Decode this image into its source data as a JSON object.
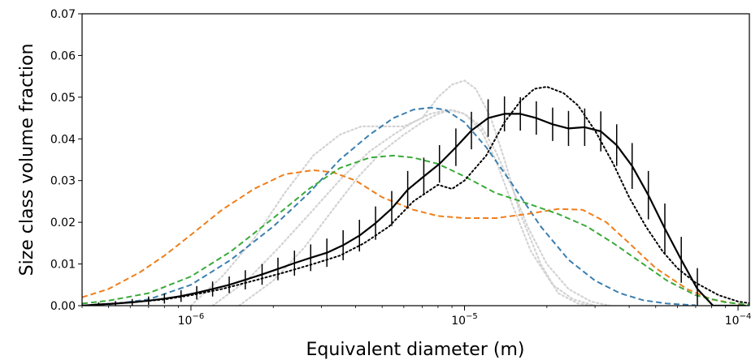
{
  "chart_data": {
    "type": "line",
    "title": "",
    "xlabel": "Equivalent diameter (m)",
    "ylabel": "Size class volume fraction",
    "x_scale": "log",
    "xlim": [
      4e-07,
      0.00011
    ],
    "ylim": [
      0,
      0.07
    ],
    "grid": false,
    "x_ticks": [
      {
        "value": 1e-06,
        "base": "10",
        "exp": "−6"
      },
      {
        "value": 1e-05,
        "base": "10",
        "exp": "−5"
      },
      {
        "value": 0.0001,
        "base": "10",
        "exp": "−4"
      }
    ],
    "y_ticks": [
      {
        "value": 0.0,
        "label": "0.00"
      },
      {
        "value": 0.01,
        "label": "0.01"
      },
      {
        "value": 0.02,
        "label": "0.02"
      },
      {
        "value": 0.03,
        "label": "0.03"
      },
      {
        "value": 0.04,
        "label": "0.04"
      },
      {
        "value": 0.05,
        "label": "0.05"
      },
      {
        "value": 0.06,
        "label": "0.06"
      },
      {
        "value": 0.07,
        "label": "0.07"
      }
    ],
    "series": [
      {
        "key": "grey-1",
        "color": "#d3d3d3",
        "style": "dotted",
        "x": [
          1e-06,
          1.3e-06,
          1.7e-06,
          2.2e-06,
          2.8e-06,
          3.5e-06,
          4.2e-06,
          5e-06,
          6e-06,
          7e-06,
          8e-06,
          9e-06,
          1e-05,
          1.1e-05,
          1.25e-05,
          1.4e-05,
          1.6e-05,
          1.9e-05,
          2.2e-05,
          2.6e-05,
          3e-05
        ],
        "y": [
          0.0,
          0.007,
          0.016,
          0.027,
          0.036,
          0.041,
          0.043,
          0.043,
          0.043,
          0.045,
          0.05,
          0.053,
          0.054,
          0.052,
          0.045,
          0.035,
          0.022,
          0.01,
          0.003,
          0.0005,
          0.0
        ]
      },
      {
        "key": "grey-2",
        "color": "#d3d3d3",
        "style": "dotted",
        "x": [
          1.2e-06,
          1.6e-06,
          2.1e-06,
          2.8e-06,
          3.6e-06,
          4.5e-06,
          5.5e-06,
          6.5e-06,
          7.5e-06,
          8.7e-06,
          1e-05,
          1.15e-05,
          1.3e-05,
          1.5e-05,
          1.7e-05,
          2e-05,
          2.4e-05,
          2.9e-05,
          3.4e-05
        ],
        "y": [
          0.0,
          0.006,
          0.014,
          0.023,
          0.031,
          0.037,
          0.041,
          0.044,
          0.046,
          0.047,
          0.046,
          0.043,
          0.037,
          0.028,
          0.019,
          0.01,
          0.004,
          0.001,
          0.0
        ]
      },
      {
        "key": "grey-3",
        "color": "#d3d3d3",
        "style": "dotted",
        "x": [
          1.5e-06,
          2e-06,
          2.6e-06,
          3.3e-06,
          4.1e-06,
          5e-06,
          6e-06,
          7e-06,
          8e-06,
          9e-06,
          1e-05,
          1.15e-05,
          1.3e-05,
          1.5e-05,
          1.75e-05,
          2.1e-05,
          2.5e-05,
          3e-05
        ],
        "y": [
          0.0,
          0.006,
          0.014,
          0.023,
          0.031,
          0.037,
          0.041,
          0.044,
          0.046,
          0.047,
          0.046,
          0.042,
          0.035,
          0.024,
          0.013,
          0.005,
          0.0015,
          0.0
        ]
      },
      {
        "key": "blue",
        "color": "#3b7fb0",
        "style": "dashed",
        "x": [
          5e-07,
          7e-07,
          1e-06,
          1.4e-06,
          2e-06,
          2.7e-06,
          3.5e-06,
          4.5e-06,
          5.5e-06,
          6.5e-06,
          7.5e-06,
          8.5e-06,
          1e-05,
          1.2e-05,
          1.5e-05,
          1.9e-05,
          2.4e-05,
          3e-05,
          3.7e-05,
          4.5e-05,
          5.5e-05,
          7e-05
        ],
        "y": [
          0.0003,
          0.0015,
          0.005,
          0.011,
          0.019,
          0.027,
          0.035,
          0.041,
          0.045,
          0.047,
          0.0475,
          0.047,
          0.044,
          0.038,
          0.029,
          0.019,
          0.011,
          0.006,
          0.003,
          0.0013,
          0.0005,
          0.0001
        ]
      },
      {
        "key": "orange",
        "color": "#f07e1a",
        "style": "dashed",
        "x": [
          4e-07,
          5e-07,
          6.5e-07,
          8e-07,
          1e-06,
          1.3e-06,
          1.7e-06,
          2.2e-06,
          2.8e-06,
          3.3e-06,
          4e-06,
          5e-06,
          6.5e-06,
          8e-06,
          1e-05,
          1.3e-05,
          1.7e-05,
          2.2e-05,
          2.7e-05,
          3.3e-05,
          4e-05,
          5e-05,
          6.5e-05,
          8e-05,
          0.0001,
          0.00011
        ],
        "y": [
          0.002,
          0.004,
          0.008,
          0.012,
          0.017,
          0.023,
          0.028,
          0.0315,
          0.0325,
          0.032,
          0.03,
          0.026,
          0.023,
          0.0215,
          0.021,
          0.021,
          0.022,
          0.0232,
          0.023,
          0.02,
          0.015,
          0.009,
          0.004,
          0.0015,
          0.0004,
          0.0002
        ]
      },
      {
        "key": "green",
        "color": "#3aaa3a",
        "style": "dashed",
        "x": [
          4e-07,
          5e-07,
          7e-07,
          1e-06,
          1.4e-06,
          2e-06,
          2.7e-06,
          3.5e-06,
          4.5e-06,
          5.5e-06,
          6.5e-06,
          8e-06,
          1e-05,
          1.3e-05,
          1.7e-05,
          2.2e-05,
          2.8e-05,
          3.5e-05,
          4.5e-05,
          5.5e-05,
          7e-05,
          9e-05,
          0.00011
        ],
        "y": [
          0.0005,
          0.0012,
          0.003,
          0.007,
          0.013,
          0.021,
          0.028,
          0.033,
          0.0355,
          0.036,
          0.0355,
          0.034,
          0.031,
          0.027,
          0.0245,
          0.022,
          0.019,
          0.015,
          0.01,
          0.006,
          0.0025,
          0.0008,
          0.0002
        ]
      },
      {
        "key": "black-dotted",
        "color": "#000000",
        "style": "dotted",
        "x": [
          4e-07,
          6e-07,
          8e-07,
          1e-06,
          1.3e-06,
          1.7e-06,
          2.2e-06,
          2.8e-06,
          3.5e-06,
          4.3e-06,
          5.3e-06,
          6.5e-06,
          8e-06,
          9e-06,
          1e-05,
          1.2e-05,
          1.4e-05,
          1.6e-05,
          1.8e-05,
          2e-05,
          2.3e-05,
          2.6e-05,
          3e-05,
          3.5e-05,
          4e-05,
          4.6e-05,
          5.3e-05,
          6e-05,
          7e-05,
          8.5e-05,
          0.0001,
          0.00011
        ],
        "y": [
          0.0,
          0.0008,
          0.0015,
          0.0025,
          0.004,
          0.006,
          0.008,
          0.01,
          0.012,
          0.015,
          0.019,
          0.025,
          0.029,
          0.028,
          0.03,
          0.036,
          0.044,
          0.049,
          0.052,
          0.0525,
          0.051,
          0.048,
          0.042,
          0.034,
          0.026,
          0.019,
          0.013,
          0.009,
          0.0055,
          0.0025,
          0.001,
          0.0006
        ]
      }
    ],
    "measured": {
      "key": "measured",
      "color": "#000000",
      "style": "solid",
      "x": [
        4e-07,
        4.6e-07,
        5.3e-07,
        6.1e-07,
        7e-07,
        8e-07,
        9.2e-07,
        1.05e-06,
        1.2e-06,
        1.38e-06,
        1.58e-06,
        1.82e-06,
        2.08e-06,
        2.39e-06,
        2.74e-06,
        3.14e-06,
        3.6e-06,
        4.13e-06,
        4.73e-06,
        5.42e-06,
        6.2e-06,
        7.1e-06,
        8.1e-06,
        9.3e-06,
        1.06e-05,
        1.22e-05,
        1.4e-05,
        1.6e-05,
        1.83e-05,
        2.1e-05,
        2.4e-05,
        2.75e-05,
        3.15e-05,
        3.6e-05,
        4.1e-05,
        4.7e-05,
        5.4e-05,
        6.2e-05,
        7.1e-05,
        8.1e-05,
        9.3e-05,
        0.000107
      ],
      "y": [
        0.0,
        0.0003,
        0.0005,
        0.0008,
        0.0012,
        0.0017,
        0.0023,
        0.0031,
        0.004,
        0.005,
        0.0062,
        0.0075,
        0.0088,
        0.0102,
        0.0115,
        0.0127,
        0.0145,
        0.0168,
        0.0198,
        0.0233,
        0.0278,
        0.031,
        0.034,
        0.038,
        0.042,
        0.045,
        0.046,
        0.046,
        0.045,
        0.0435,
        0.0425,
        0.0428,
        0.0418,
        0.0385,
        0.0335,
        0.0265,
        0.0185,
        0.011,
        0.004,
        0.0,
        0.0,
        0.0
      ],
      "err": [
        0.0005,
        0.0005,
        0.0006,
        0.0008,
        0.001,
        0.0012,
        0.0014,
        0.0016,
        0.0018,
        0.002,
        0.0023,
        0.0025,
        0.0027,
        0.003,
        0.0032,
        0.0034,
        0.0036,
        0.0038,
        0.004,
        0.0042,
        0.0045,
        0.0045,
        0.0045,
        0.0045,
        0.0045,
        0.0045,
        0.0042,
        0.004,
        0.004,
        0.004,
        0.0042,
        0.0045,
        0.0048,
        0.005,
        0.0055,
        0.0058,
        0.006,
        0.0055,
        0.005,
        0.0,
        0.0,
        0.0
      ]
    }
  }
}
